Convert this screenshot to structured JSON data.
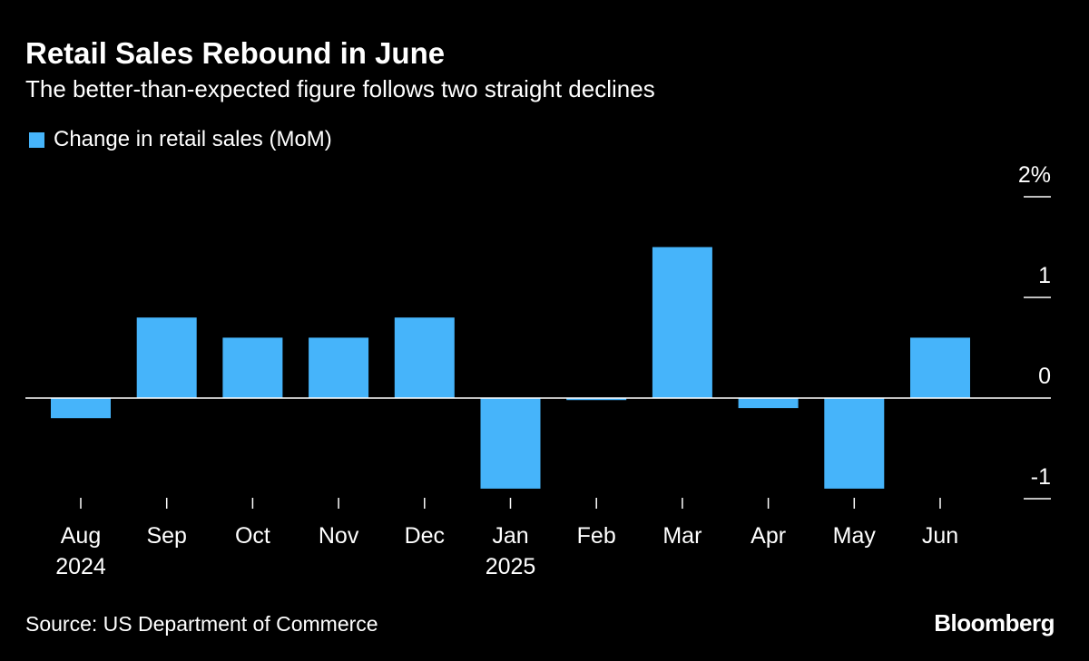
{
  "title": "Retail Sales Rebound in June",
  "subtitle": "The better-than-expected figure follows two straight declines",
  "source": "Source: US Department of Commerce",
  "brand": "Bloomberg",
  "colors": {
    "bar": "#46b4fa",
    "background": "#000000"
  },
  "chart_data": {
    "type": "bar",
    "title": "Retail Sales Rebound in June",
    "legend": [
      "Change in retail sales (MoM)"
    ],
    "legend_position": "top-left",
    "categories": [
      "Aug",
      "Sep",
      "Oct",
      "Nov",
      "Dec",
      "Jan",
      "Feb",
      "Mar",
      "Apr",
      "May",
      "Jun"
    ],
    "category_sublabels": [
      "2024",
      "",
      "",
      "",
      "",
      "2025",
      "",
      "",
      "",
      "",
      ""
    ],
    "series": [
      {
        "name": "Change in retail sales (MoM)",
        "values": [
          -0.2,
          0.8,
          0.6,
          0.6,
          0.8,
          -0.9,
          -0.02,
          1.5,
          -0.1,
          -0.9,
          0.6
        ]
      }
    ],
    "ylim": [
      -1,
      2
    ],
    "yticks": [
      2,
      1,
      0,
      -1
    ],
    "ytick_labels": [
      "2%",
      "1",
      "0",
      "-1"
    ],
    "yaxis_position": "right",
    "xlabel": "",
    "ylabel": ""
  }
}
